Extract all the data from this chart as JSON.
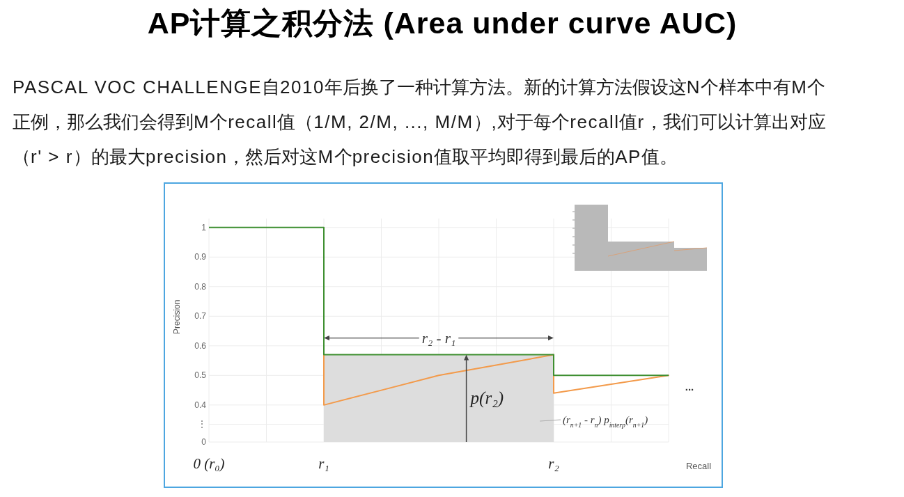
{
  "chart_data": {
    "type": "line",
    "title": "AP计算之积分法 (Area under curve AUC)",
    "subtitle": "PASCAL VOC CHALLENGE自2010年后换了一种计算方法。新的计算方法假设这N个样本中有M个正例，那么我们会得到M个recall值（1/M, 2/M, ..., M/M）,对于每个recall值r，我们可以计算出对应（r' > r）的最大precision，然后对这M个precision值取平均即得到最后的AP值。",
    "xlabel": "Recall",
    "ylabel": "Precision",
    "categories": [
      "0 (r₀)",
      null,
      "r₁",
      null,
      null,
      null,
      "r₂",
      null,
      null
    ],
    "ylim": [
      0.275,
      1.03
    ],
    "yticks": [
      {
        "value": 0.275,
        "label": "0"
      },
      {
        "value": 0.335,
        "label": "⋮"
      },
      0.4,
      0.5,
      0.6,
      0.7,
      0.8,
      0.9,
      1
    ],
    "grid": true,
    "series": [
      {
        "type": "area",
        "color": "#dddddd",
        "values": [
          null,
          null,
          0.57,
          0.57,
          0.57,
          0.57,
          0.57,
          null,
          null
        ]
      },
      {
        "color": "#f39a4a",
        "values": [
          null,
          null,
          0.4,
          0.45,
          0.5,
          0.535,
          0.57,
          null,
          null
        ],
        "errors": [
          null,
          null,
          [
            0.4,
            0.57
          ],
          null,
          null,
          null,
          null,
          null,
          null
        ]
      },
      {
        "color": "#f39a4a",
        "values": [
          null,
          null,
          null,
          null,
          null,
          null,
          0.44,
          0.47,
          0.5
        ],
        "errors": [
          null,
          null,
          null,
          null,
          null,
          null,
          [
            0.44,
            0.5
          ],
          null,
          null
        ]
      },
      {
        "type": "step",
        "color": "#3e8f30",
        "values": [
          1,
          1,
          0.57,
          0.57,
          0.57,
          0.57,
          0.5,
          0.5,
          0.5
        ]
      }
    ],
    "annotations": [
      {
        "text": "r₂ - r₁",
        "y": 0.57
      },
      {
        "text": "p(r₂)",
        "y": 0.57
      },
      "(r$_{n+1}$ - r$_{n}$) p$_{interp}$(r$_{n+1}$)",
      "..."
    ]
  }
}
